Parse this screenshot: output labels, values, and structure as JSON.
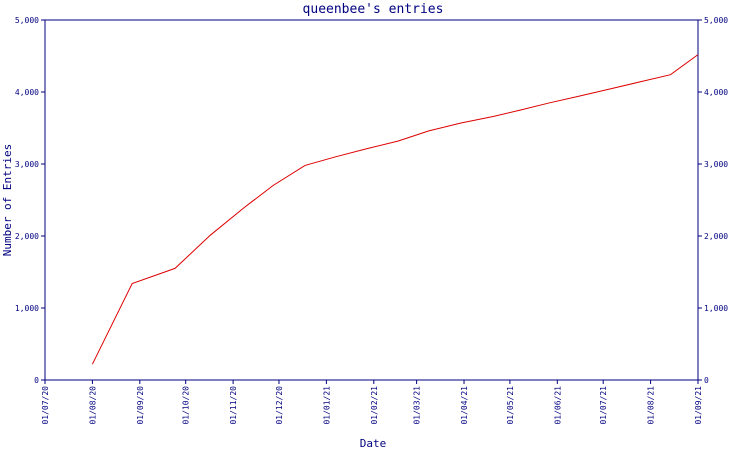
{
  "chart_data": {
    "type": "line",
    "title": "queenbee's entries",
    "xlabel": "Date",
    "ylabel": "Number of Entries",
    "ylim": [
      0,
      5000
    ],
    "y_ticks": [
      0,
      1000,
      2000,
      3000,
      4000,
      5000
    ],
    "y_tick_labels": [
      "0",
      "1,000",
      "2,000",
      "3,000",
      "4,000",
      "5,000"
    ],
    "x_range": [
      "2020-07-01",
      "2021-09-01"
    ],
    "x_ticks": [
      "2020-07-01",
      "2020-08-01",
      "2020-09-01",
      "2020-10-01",
      "2020-11-01",
      "2020-12-01",
      "2021-01-01",
      "2021-02-01",
      "2021-03-01",
      "2021-04-01",
      "2021-05-01",
      "2021-06-01",
      "2021-07-01",
      "2021-08-01",
      "2021-09-01"
    ],
    "x_tick_labels": [
      "01/07/20",
      "01/08/20",
      "01/09/20",
      "01/10/20",
      "01/11/20",
      "01/12/20",
      "01/01/21",
      "01/02/21",
      "01/03/21",
      "01/04/21",
      "01/05/21",
      "01/06/21",
      "01/07/21",
      "01/08/21",
      "01/09/21"
    ],
    "right_axis": true,
    "grid": false,
    "colors": {
      "frame": "#000080",
      "series": "#dd0000",
      "background": "#ffffff"
    },
    "series": [
      {
        "color": "#dd0000",
        "x": [
          "2020-08-01",
          "2020-08-27",
          "2020-09-24",
          "2020-10-17",
          "2020-11-08",
          "2020-11-27",
          "2020-12-18",
          "2021-01-07",
          "2021-01-27",
          "2021-02-17",
          "2021-03-09",
          "2021-03-30",
          "2021-04-20",
          "2021-05-08",
          "2021-05-27",
          "2021-06-15",
          "2021-07-05",
          "2021-07-25",
          "2021-08-14",
          "2021-09-01"
        ],
        "y": [
          220,
          1340,
          1550,
          2010,
          2390,
          2700,
          2980,
          3100,
          3210,
          3320,
          3460,
          3570,
          3660,
          3750,
          3850,
          3940,
          4040,
          4140,
          4240,
          4520
        ]
      }
    ]
  }
}
